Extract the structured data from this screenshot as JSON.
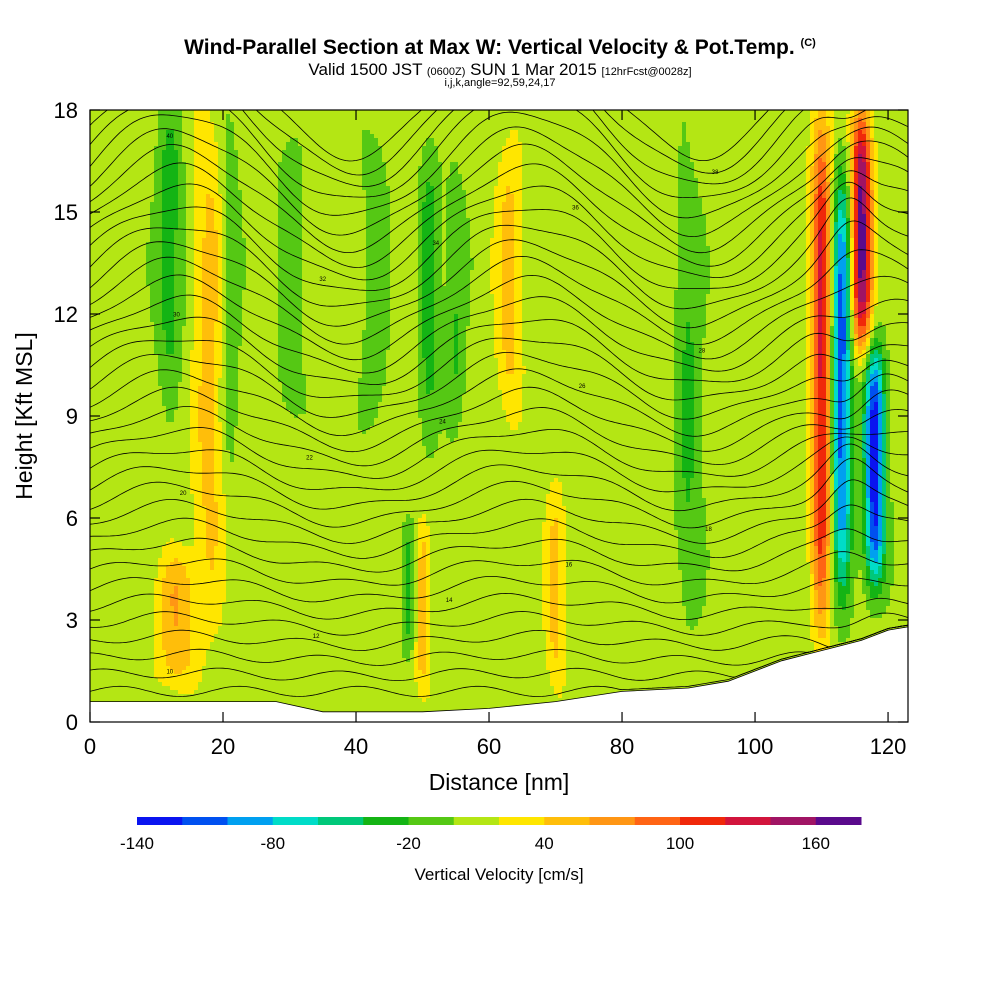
{
  "header": {
    "title": "Wind-Parallel Section at Max W: Vertical Velocity & Pot.Temp.",
    "title_mark": "(C)",
    "valid_prefix": "Valid 1500 JST",
    "valid_small1": "(0600Z)",
    "valid_mid": "SUN 1 Mar 2015",
    "valid_small2": "[12hrFcst@0028z]",
    "indices": "i,j,k,angle=92,59,24,17"
  },
  "chart_data": {
    "type": "heatmap",
    "xlabel": "Distance [nm]",
    "ylabel": "Height [Kft MSL]",
    "xlim": [
      0,
      123
    ],
    "ylim": [
      0,
      18
    ],
    "xticks": [
      0,
      20,
      40,
      60,
      80,
      100,
      120
    ],
    "yticks": [
      0,
      3,
      6,
      9,
      12,
      15,
      18
    ],
    "colorbar": {
      "title": "Vertical Velocity [cm/s]",
      "bins": [
        -140,
        -120,
        -100,
        -80,
        -60,
        -40,
        -20,
        0,
        20,
        40,
        60,
        80,
        100,
        120,
        140,
        160,
        180
      ],
      "tick_values": [
        -140,
        -80,
        -20,
        40,
        100,
        160
      ],
      "colors": [
        "#0a14f0",
        "#0050f0",
        "#00a0f0",
        "#00dcc8",
        "#00c87a",
        "#14b414",
        "#55c814",
        "#b4e614",
        "#ffe600",
        "#ffbe0a",
        "#ff9614",
        "#ff6414",
        "#f0280a",
        "#d2143c",
        "#a01464",
        "#5a0a8c"
      ]
    },
    "velocity_features": [
      {
        "x": 12,
        "y_range": [
          10,
          18
        ],
        "w": -40,
        "width": 2
      },
      {
        "x": 18,
        "y_range": [
          3,
          18
        ],
        "w": 40,
        "width": 2.5
      },
      {
        "x": 21,
        "y_range": [
          7,
          18
        ],
        "w": -30,
        "width": 1.5
      },
      {
        "x": 13,
        "y_range": [
          1,
          5
        ],
        "w": 50,
        "width": 3
      },
      {
        "x": 30,
        "y_range": [
          8,
          18
        ],
        "w": -20,
        "width": 2
      },
      {
        "x": 43,
        "y_range": [
          8,
          18
        ],
        "w": -20,
        "width": 2
      },
      {
        "x": 48,
        "y_range": [
          2,
          6
        ],
        "w": -40,
        "width": 1.2
      },
      {
        "x": 50,
        "y_range": [
          1,
          6
        ],
        "w": 50,
        "width": 1.2
      },
      {
        "x": 51,
        "y_range": [
          8,
          17
        ],
        "w": -40,
        "width": 1.5
      },
      {
        "x": 55,
        "y_range": [
          9,
          16
        ],
        "w": -30,
        "width": 1.5
      },
      {
        "x": 63,
        "y_range": [
          9,
          17
        ],
        "w": 40,
        "width": 2
      },
      {
        "x": 70,
        "y_range": [
          1,
          7
        ],
        "w": 40,
        "width": 1.5
      },
      {
        "x": 90,
        "y_range": [
          3,
          16
        ],
        "w": -30,
        "width": 2
      },
      {
        "x": 110,
        "y_range": [
          3,
          18
        ],
        "w": 120,
        "width": 1.5
      },
      {
        "x": 113,
        "y_range": [
          4,
          16
        ],
        "w": -120,
        "width": 1.5
      },
      {
        "x": 118,
        "y_range": [
          4,
          11
        ],
        "w": -140,
        "width": 1.5
      },
      {
        "x": 116,
        "y_range": [
          11,
          18
        ],
        "w": 160,
        "width": 1.5
      }
    ],
    "theta_contours": {
      "count": 36,
      "label_values": [
        "10",
        "12",
        "14",
        "16",
        "18",
        "20",
        "22",
        "24",
        "26",
        "28",
        "30",
        "32",
        "34",
        "36",
        "38",
        "40"
      ]
    },
    "terrain": [
      [
        0,
        0.6
      ],
      [
        18,
        0.6
      ],
      [
        28,
        0.6
      ],
      [
        35,
        0.3
      ],
      [
        42,
        0.3
      ],
      [
        50,
        0.3
      ],
      [
        60,
        0.4
      ],
      [
        70,
        0.6
      ],
      [
        80,
        0.9
      ],
      [
        90,
        1.0
      ],
      [
        96,
        1.2
      ],
      [
        100,
        1.5
      ],
      [
        104,
        1.8
      ],
      [
        108,
        2.0
      ],
      [
        112,
        2.2
      ],
      [
        116,
        2.4
      ],
      [
        120,
        2.7
      ],
      [
        123,
        2.8
      ]
    ]
  }
}
